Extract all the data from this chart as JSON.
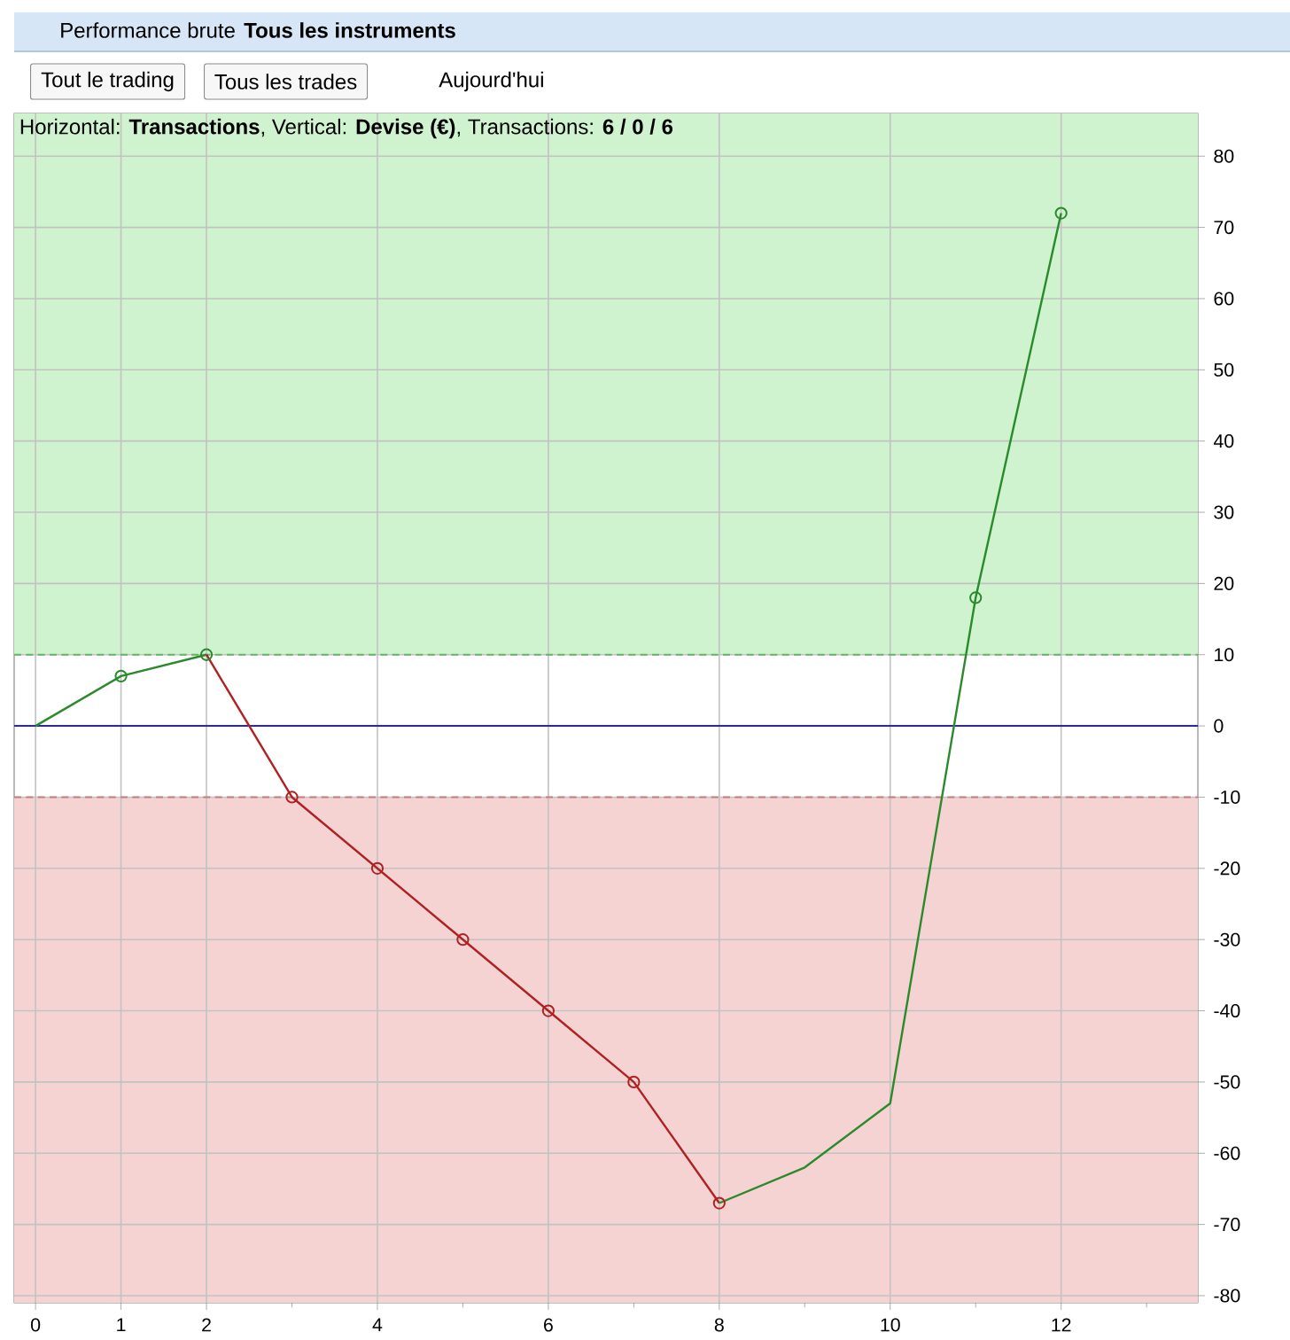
{
  "chart_data": {
    "type": "line",
    "title": "Horizontal: **Transactions**, Vertical: **Devise (€)**, Transactions: **6 / 0 / 6**",
    "annotations": [
      "Performance brute",
      "Tous les instruments",
      "Tout le trading",
      "Tous les trades",
      "Aujourd'hui"
    ],
    "series": [
      {
        "color": "#2b8a2b",
        "x": [
          0,
          1,
          2
        ],
        "values": [
          0,
          7,
          10
        ]
      },
      {
        "color": "#b02222",
        "x": [
          2,
          3,
          4,
          5,
          6,
          7,
          8
        ],
        "values": [
          10,
          -10,
          -20,
          -30,
          -40,
          -50,
          -67
        ]
      },
      {
        "color": "#2b8a2b",
        "x": [
          8,
          9,
          10,
          11,
          12
        ],
        "values": [
          -67,
          -62,
          -53,
          18,
          72
        ]
      },
      {
        "type": "scatter",
        "marker": "circle",
        "color": "#2b8a2b",
        "x": [
          1,
          2,
          11,
          12
        ],
        "values": [
          7,
          10,
          18,
          72
        ]
      },
      {
        "type": "scatter",
        "marker": "circle",
        "color": "#b02222",
        "x": [
          3,
          4,
          5,
          6,
          7,
          8
        ],
        "values": [
          -10,
          -20,
          -30,
          -40,
          -50,
          -67
        ]
      }
    ],
    "xlim": [
      -0.25,
      13.6
    ],
    "ylim": [
      -81,
      86
    ],
    "xticks": [
      0,
      1,
      2,
      {
        "value": 3,
        "label": null
      },
      4,
      {
        "value": 5,
        "label": null
      },
      6,
      {
        "value": 7,
        "label": null
      },
      8,
      {
        "value": 9,
        "label": null
      },
      10,
      {
        "value": 11,
        "label": null
      },
      12,
      {
        "value": 13,
        "label": null
      }
    ],
    "yticks": [
      -80,
      -70,
      -60,
      -50,
      -40,
      -30,
      -20,
      -10,
      0,
      10,
      20,
      30,
      40,
      50,
      60,
      70,
      80
    ],
    "grid": true,
    "bands": [
      {
        "axis": "y",
        "from": 10,
        "to": 86,
        "color": "#cff2cf"
      },
      {
        "axis": "y",
        "from": -81,
        "to": -10,
        "color": "#f6d3d3"
      }
    ],
    "ref_lines": [
      {
        "axis": "y",
        "value": 10,
        "color": "#5fb85f",
        "line_style": "dashed"
      },
      {
        "axis": "y",
        "value": -10,
        "color": "#c47f7f",
        "line_style": "dashed"
      },
      {
        "axis": "y",
        "value": 0,
        "color": "#2a2a9a",
        "line_style": "solid"
      }
    ]
  }
}
